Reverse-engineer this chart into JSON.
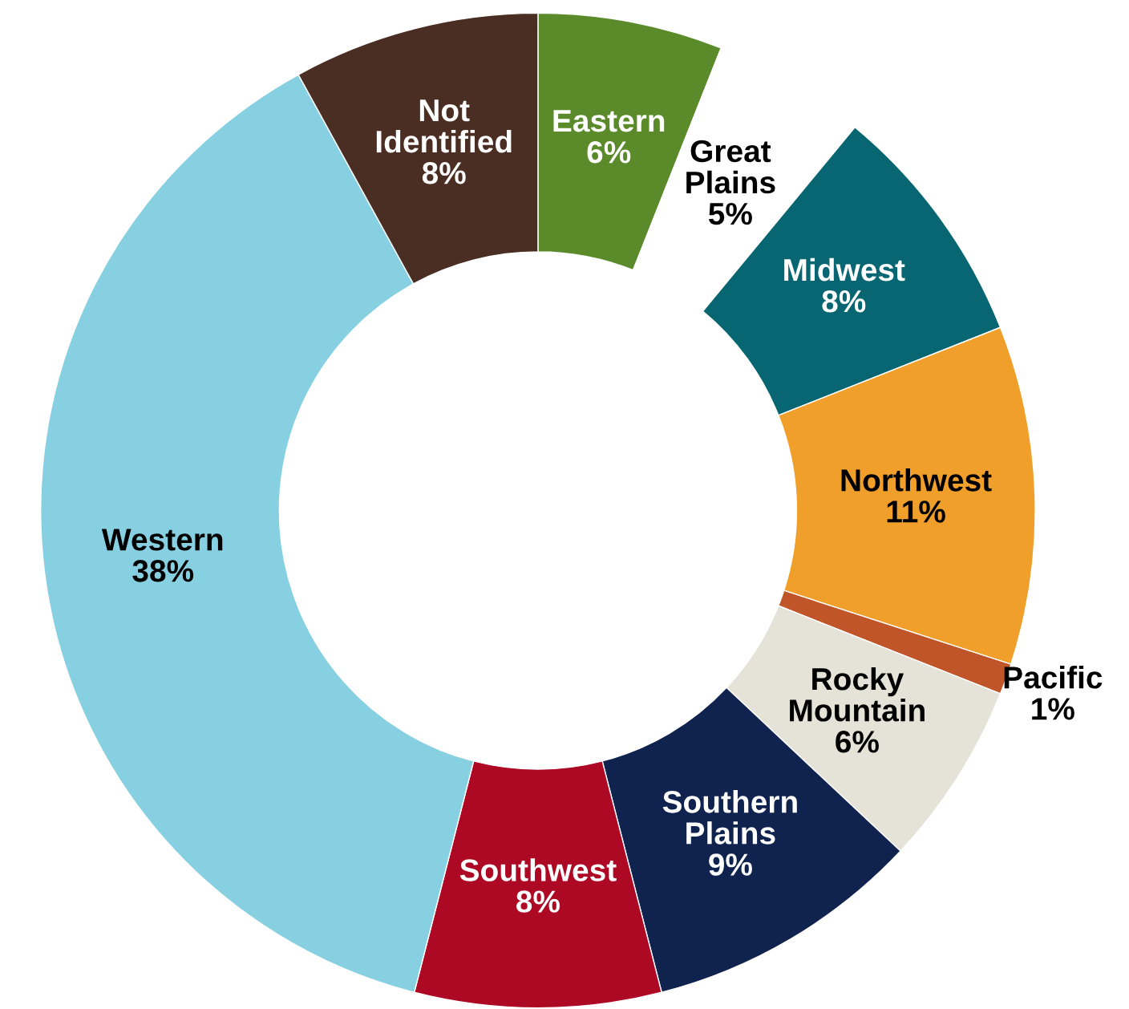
{
  "chart_data": {
    "type": "donut",
    "categories": [
      "Eastern",
      "Great Plains",
      "Midwest",
      "Northwest",
      "Pacific",
      "Rocky Mountain",
      "Southern Plains",
      "Southwest",
      "Western",
      "Not Identified"
    ],
    "values": [
      6,
      5,
      8,
      11,
      1,
      6,
      9,
      8,
      38,
      8
    ],
    "value_labels": [
      "6%",
      "5%",
      "8%",
      "11%",
      "1%",
      "6%",
      "9%",
      "8%",
      "38%",
      "8%"
    ],
    "colors": [
      "#5a8a2a",
      "#ffffff",
      "#076672",
      "#f0a02a",
      "#c0552a",
      "#e5e2d8",
      "#10234f",
      "#ad0824",
      "#87d0e2",
      "#4a2e24"
    ]
  }
}
